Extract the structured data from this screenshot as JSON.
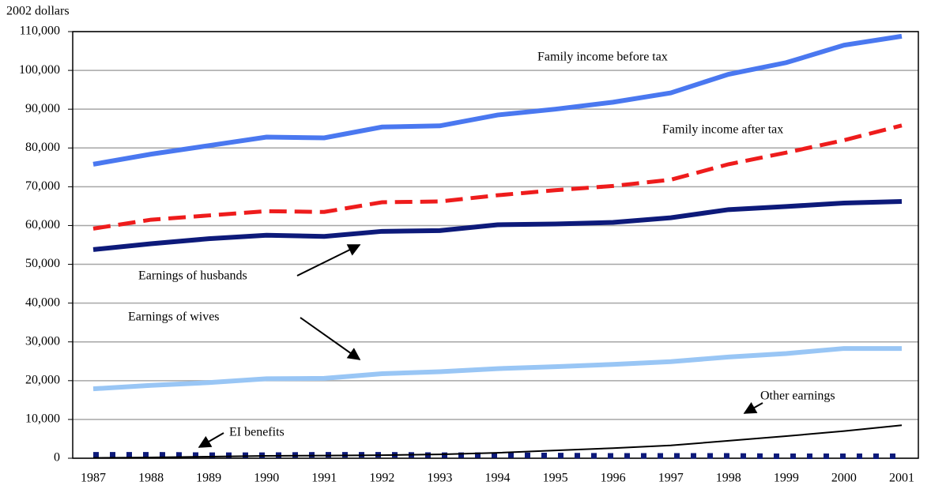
{
  "chart_data": {
    "type": "line",
    "y_label": "2002 dollars",
    "categories": [
      "1987",
      "1988",
      "1989",
      "1990",
      "1991",
      "1992",
      "1993",
      "1994",
      "1995",
      "1996",
      "1997",
      "1998",
      "1999",
      "2000",
      "2001"
    ],
    "series": [
      {
        "name": "Family income before tax",
        "color": "#4a78f0",
        "style": "solid",
        "width": 6,
        "values": [
          75800,
          78400,
          80600,
          82800,
          82600,
          85400,
          85700,
          88500,
          90000,
          91800,
          94200,
          99000,
          102000,
          106500,
          108800
        ]
      },
      {
        "name": "Family income after tax",
        "color": "#ee1c1c",
        "style": "dashed",
        "width": 5,
        "values": [
          59200,
          61500,
          62600,
          63700,
          63500,
          66000,
          66200,
          67800,
          69100,
          70200,
          71800,
          75800,
          78800,
          82000,
          85800
        ]
      },
      {
        "name": "Earnings of husbands",
        "color": "#0d1a7a",
        "style": "solid",
        "width": 6,
        "values": [
          53800,
          55300,
          56600,
          57500,
          57200,
          58500,
          58700,
          60200,
          60400,
          60800,
          62000,
          64100,
          64900,
          65800,
          66200
        ]
      },
      {
        "name": "Earnings of wives",
        "color": "#99c6f5",
        "style": "solid",
        "width": 6,
        "values": [
          17900,
          18800,
          19500,
          20500,
          20600,
          21800,
          22300,
          23100,
          23600,
          24200,
          24900,
          26100,
          27000,
          28300,
          28300
        ]
      },
      {
        "name": "Other earnings",
        "color": "#000000",
        "style": "solid",
        "width": 2,
        "values": [
          100,
          200,
          400,
          600,
          700,
          800,
          1000,
          1400,
          2000,
          2600,
          3300,
          4500,
          5700,
          7000,
          8500
        ]
      },
      {
        "name": "EI benefits",
        "color": "#0d1a7a",
        "style": "dotted",
        "width": 7,
        "values": [
          900,
          900,
          800,
          800,
          900,
          900,
          800,
          800,
          700,
          600,
          600,
          600,
          500,
          500,
          500
        ]
      }
    ],
    "ylim": [
      0,
      110000
    ],
    "yticks": [
      0,
      {
        "value": 10000,
        "label": "10,000"
      },
      {
        "value": 20000,
        "label": "20,000"
      },
      {
        "value": 30000,
        "label": "30,000"
      },
      {
        "value": 40000,
        "label": "40,000"
      },
      {
        "value": 50000,
        "label": "50,000"
      },
      {
        "value": 60000,
        "label": "60,000"
      },
      {
        "value": 70000,
        "label": "70,000"
      },
      {
        "value": 80000,
        "label": "80,000"
      },
      {
        "value": 90000,
        "label": "90,000"
      },
      {
        "value": 100000,
        "label": "100,000"
      },
      {
        "value": 110000,
        "label": "110,000"
      }
    ],
    "grid": true
  }
}
